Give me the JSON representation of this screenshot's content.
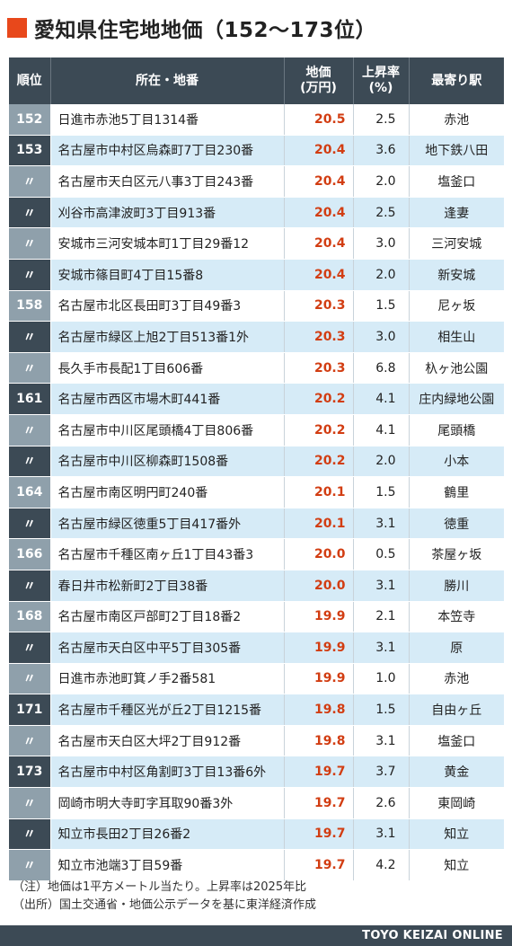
{
  "title": "愛知県住宅地地価（152〜173位）",
  "headers": {
    "rank": "順位",
    "address": "所在・地番",
    "price_line1": "地価",
    "price_line2": "(万円)",
    "rate_line1": "上昇率",
    "rate_line2": "(%)",
    "station": "最寄り駅"
  },
  "rows": [
    {
      "rank": "152",
      "address": "日進市赤池5丁目1314番",
      "price": "20.5",
      "rate": "2.5",
      "station": "赤池"
    },
    {
      "rank": "153",
      "address": "名古屋市中村区烏森町7丁目230番",
      "price": "20.4",
      "rate": "3.6",
      "station": "地下鉄八田"
    },
    {
      "rank": "〃",
      "address": "名古屋市天白区元八事3丁目243番",
      "price": "20.4",
      "rate": "2.0",
      "station": "塩釜口"
    },
    {
      "rank": "〃",
      "address": "刈谷市高津波町3丁目913番",
      "price": "20.4",
      "rate": "2.5",
      "station": "逢妻"
    },
    {
      "rank": "〃",
      "address": "安城市三河安城本町1丁目29番12",
      "price": "20.4",
      "rate": "3.0",
      "station": "三河安城"
    },
    {
      "rank": "〃",
      "address": "安城市篠目町4丁目15番8",
      "price": "20.4",
      "rate": "2.0",
      "station": "新安城"
    },
    {
      "rank": "158",
      "address": "名古屋市北区長田町3丁目49番3",
      "price": "20.3",
      "rate": "1.5",
      "station": "尼ヶ坂"
    },
    {
      "rank": "〃",
      "address": "名古屋市緑区上旭2丁目513番1外",
      "price": "20.3",
      "rate": "3.0",
      "station": "相生山"
    },
    {
      "rank": "〃",
      "address": "長久手市長配1丁目606番",
      "price": "20.3",
      "rate": "6.8",
      "station": "杁ヶ池公園"
    },
    {
      "rank": "161",
      "address": "名古屋市西区市場木町441番",
      "price": "20.2",
      "rate": "4.1",
      "station": "庄内緑地公園"
    },
    {
      "rank": "〃",
      "address": "名古屋市中川区尾頭橋4丁目806番",
      "price": "20.2",
      "rate": "4.1",
      "station": "尾頭橋"
    },
    {
      "rank": "〃",
      "address": "名古屋市中川区柳森町1508番",
      "price": "20.2",
      "rate": "2.0",
      "station": "小本"
    },
    {
      "rank": "164",
      "address": "名古屋市南区明円町240番",
      "price": "20.1",
      "rate": "1.5",
      "station": "鶴里"
    },
    {
      "rank": "〃",
      "address": "名古屋市緑区徳重5丁目417番外",
      "price": "20.1",
      "rate": "3.1",
      "station": "徳重"
    },
    {
      "rank": "166",
      "address": "名古屋市千種区南ヶ丘1丁目43番3",
      "price": "20.0",
      "rate": "0.5",
      "station": "茶屋ヶ坂"
    },
    {
      "rank": "〃",
      "address": "春日井市松新町2丁目38番",
      "price": "20.0",
      "rate": "3.1",
      "station": "勝川"
    },
    {
      "rank": "168",
      "address": "名古屋市南区戸部町2丁目18番2",
      "price": "19.9",
      "rate": "2.1",
      "station": "本笠寺"
    },
    {
      "rank": "〃",
      "address": "名古屋市天白区中平5丁目305番",
      "price": "19.9",
      "rate": "3.1",
      "station": "原"
    },
    {
      "rank": "〃",
      "address": "日進市赤池町箕ノ手2番581",
      "price": "19.9",
      "rate": "1.0",
      "station": "赤池"
    },
    {
      "rank": "171",
      "address": "名古屋市千種区光が丘2丁目1215番",
      "price": "19.8",
      "rate": "1.5",
      "station": "自由ヶ丘"
    },
    {
      "rank": "〃",
      "address": "名古屋市天白区大坪2丁目912番",
      "price": "19.8",
      "rate": "3.1",
      "station": "塩釜口"
    },
    {
      "rank": "173",
      "address": "名古屋市中村区角割町3丁目13番6外",
      "price": "19.7",
      "rate": "3.7",
      "station": "黄金"
    },
    {
      "rank": "〃",
      "address": "岡崎市明大寺町字耳取90番3外",
      "price": "19.7",
      "rate": "2.6",
      "station": "東岡崎"
    },
    {
      "rank": "〃",
      "address": "知立市長田2丁目26番2",
      "price": "19.7",
      "rate": "3.1",
      "station": "知立"
    },
    {
      "rank": "〃",
      "address": "知立市池端3丁目59番",
      "price": "19.7",
      "rate": "4.2",
      "station": "知立"
    }
  ],
  "notes": {
    "note1": "（注）地価は1平方メートル当たり。上昇率は2025年比",
    "note2": "（出所）国土交通省・地価公示データを基に東洋経済作成"
  },
  "footer": "TOYO KEIZAI ONLINE"
}
